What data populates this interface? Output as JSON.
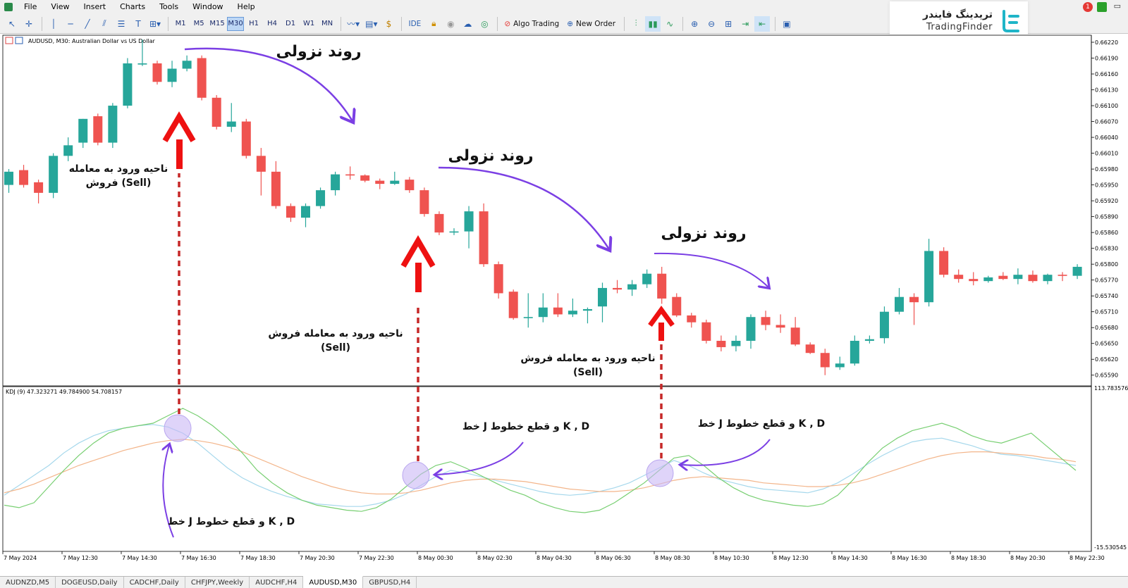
{
  "menu": {
    "items": [
      "File",
      "View",
      "Insert",
      "Charts",
      "Tools",
      "Window",
      "Help"
    ]
  },
  "toolbar": {
    "timeframes": [
      "M1",
      "M5",
      "M15",
      "M30",
      "H1",
      "H4",
      "D1",
      "W1",
      "MN"
    ],
    "active_timeframe": "M30",
    "ide_label": "IDE",
    "algo_trading_label": "Algo Trading",
    "new_order_label": "New Order",
    "notification_count": "1"
  },
  "logo": {
    "fa": "تریدینگ فایندر",
    "en": "TradingFinder"
  },
  "chart": {
    "title": "AUDUSD, M30:  Australian Dollar vs US Dollar",
    "indicator_label": "KDJ (9) 47.323271 49.784900 54.708157",
    "price_axis": [
      "0.66220",
      "0.66190",
      "0.66160",
      "0.66130",
      "0.66100",
      "0.66070",
      "0.66040",
      "0.66010",
      "0.65980",
      "0.65950",
      "0.65920",
      "0.65890",
      "0.65860",
      "0.65830",
      "0.65800",
      "0.65770",
      "0.65740",
      "0.65710",
      "0.65680",
      "0.65650",
      "0.65620",
      "0.65590"
    ],
    "osc_axis_top": "113.783576",
    "osc_axis_bottom": "-15.530545",
    "time_axis": [
      "7 May 2024",
      "7 May 12:30",
      "7 May 14:30",
      "7 May 16:30",
      "7 May 18:30",
      "7 May 20:30",
      "7 May 22:30",
      "8 May 00:30",
      "8 May 02:30",
      "8 May 04:30",
      "8 May 06:30",
      "8 May 08:30",
      "8 May 10:30",
      "8 May 12:30",
      "8 May 14:30",
      "8 May 16:30",
      "8 May 18:30",
      "8 May 20:30",
      "8 May 22:30"
    ],
    "colors": {
      "bull": "#26a69a",
      "bear": "#ef5350",
      "arrow_red": "#ee1111",
      "annotation_purple": "#7b3fe4",
      "k_line": "#a6d8ec",
      "d_line": "#f3b58a",
      "j_line": "#78cf72"
    },
    "candles": [
      {
        "o": 0.6595,
        "h": 0.6598,
        "l": 0.65935,
        "c": 0.65975
      },
      {
        "o": 0.65978,
        "h": 0.65988,
        "l": 0.65945,
        "c": 0.6595
      },
      {
        "o": 0.65955,
        "h": 0.6596,
        "l": 0.65915,
        "c": 0.65935
      },
      {
        "o": 0.65935,
        "h": 0.6601,
        "l": 0.65925,
        "c": 0.66005
      },
      {
        "o": 0.66005,
        "h": 0.6604,
        "l": 0.65995,
        "c": 0.66025
      },
      {
        "o": 0.6603,
        "h": 0.66075,
        "l": 0.6602,
        "c": 0.66075
      },
      {
        "o": 0.6608,
        "h": 0.66085,
        "l": 0.66025,
        "c": 0.6603
      },
      {
        "o": 0.6603,
        "h": 0.66105,
        "l": 0.6602,
        "c": 0.661
      },
      {
        "o": 0.661,
        "h": 0.6619,
        "l": 0.66095,
        "c": 0.6618
      },
      {
        "o": 0.6618,
        "h": 0.66225,
        "l": 0.66175,
        "c": 0.6618
      },
      {
        "o": 0.6618,
        "h": 0.66185,
        "l": 0.6614,
        "c": 0.66145
      },
      {
        "o": 0.66145,
        "h": 0.66185,
        "l": 0.66135,
        "c": 0.6617
      },
      {
        "o": 0.6617,
        "h": 0.66195,
        "l": 0.66165,
        "c": 0.66185
      },
      {
        "o": 0.6619,
        "h": 0.66195,
        "l": 0.6611,
        "c": 0.66115
      },
      {
        "o": 0.66115,
        "h": 0.6612,
        "l": 0.66055,
        "c": 0.6606
      },
      {
        "o": 0.6606,
        "h": 0.66105,
        "l": 0.6605,
        "c": 0.6607
      },
      {
        "o": 0.6607,
        "h": 0.66075,
        "l": 0.66,
        "c": 0.66005
      },
      {
        "o": 0.66005,
        "h": 0.6602,
        "l": 0.6593,
        "c": 0.65975
      },
      {
        "o": 0.65975,
        "h": 0.65995,
        "l": 0.65905,
        "c": 0.6591
      },
      {
        "o": 0.6591,
        "h": 0.65915,
        "l": 0.6588,
        "c": 0.65888
      },
      {
        "o": 0.65888,
        "h": 0.65915,
        "l": 0.6587,
        "c": 0.6591
      },
      {
        "o": 0.6591,
        "h": 0.65945,
        "l": 0.65905,
        "c": 0.6594
      },
      {
        "o": 0.6594,
        "h": 0.65975,
        "l": 0.6593,
        "c": 0.6597
      },
      {
        "o": 0.6597,
        "h": 0.65985,
        "l": 0.6596,
        "c": 0.65968
      },
      {
        "o": 0.65968,
        "h": 0.6597,
        "l": 0.65955,
        "c": 0.65958
      },
      {
        "o": 0.65958,
        "h": 0.65962,
        "l": 0.65942,
        "c": 0.65952
      },
      {
        "o": 0.65952,
        "h": 0.65975,
        "l": 0.6595,
        "c": 0.65958
      },
      {
        "o": 0.6596,
        "h": 0.65965,
        "l": 0.65935,
        "c": 0.6594
      },
      {
        "o": 0.6594,
        "h": 0.65945,
        "l": 0.6589,
        "c": 0.65895
      },
      {
        "o": 0.65895,
        "h": 0.659,
        "l": 0.65855,
        "c": 0.6586
      },
      {
        "o": 0.65862,
        "h": 0.65868,
        "l": 0.65855,
        "c": 0.65862
      },
      {
        "o": 0.65862,
        "h": 0.6591,
        "l": 0.6583,
        "c": 0.659
      },
      {
        "o": 0.659,
        "h": 0.65915,
        "l": 0.65795,
        "c": 0.658
      },
      {
        "o": 0.658,
        "h": 0.65805,
        "l": 0.65735,
        "c": 0.65745
      },
      {
        "o": 0.65748,
        "h": 0.65752,
        "l": 0.65695,
        "c": 0.65698
      },
      {
        "o": 0.65698,
        "h": 0.65745,
        "l": 0.6568,
        "c": 0.657
      },
      {
        "o": 0.657,
        "h": 0.65745,
        "l": 0.6569,
        "c": 0.65718
      },
      {
        "o": 0.65718,
        "h": 0.65745,
        "l": 0.657,
        "c": 0.65705
      },
      {
        "o": 0.65705,
        "h": 0.65735,
        "l": 0.657,
        "c": 0.65712
      },
      {
        "o": 0.65712,
        "h": 0.65718,
        "l": 0.65688,
        "c": 0.65715
      },
      {
        "o": 0.6572,
        "h": 0.65765,
        "l": 0.6569,
        "c": 0.65755
      },
      {
        "o": 0.65755,
        "h": 0.6577,
        "l": 0.65745,
        "c": 0.65752
      },
      {
        "o": 0.65752,
        "h": 0.6577,
        "l": 0.6574,
        "c": 0.65762
      },
      {
        "o": 0.65762,
        "h": 0.6579,
        "l": 0.65755,
        "c": 0.65782
      },
      {
        "o": 0.65782,
        "h": 0.65795,
        "l": 0.65725,
        "c": 0.65735
      },
      {
        "o": 0.65738,
        "h": 0.65745,
        "l": 0.657,
        "c": 0.65703
      },
      {
        "o": 0.65703,
        "h": 0.65708,
        "l": 0.6568,
        "c": 0.6569
      },
      {
        "o": 0.6569,
        "h": 0.65695,
        "l": 0.6565,
        "c": 0.65655
      },
      {
        "o": 0.65655,
        "h": 0.65665,
        "l": 0.65635,
        "c": 0.65643
      },
      {
        "o": 0.65645,
        "h": 0.65665,
        "l": 0.65635,
        "c": 0.65655
      },
      {
        "o": 0.65655,
        "h": 0.65705,
        "l": 0.6564,
        "c": 0.657
      },
      {
        "o": 0.657,
        "h": 0.65712,
        "l": 0.65675,
        "c": 0.65685
      },
      {
        "o": 0.65685,
        "h": 0.65705,
        "l": 0.6567,
        "c": 0.6568
      },
      {
        "o": 0.6568,
        "h": 0.657,
        "l": 0.65645,
        "c": 0.65648
      },
      {
        "o": 0.65648,
        "h": 0.65652,
        "l": 0.6563,
        "c": 0.65632
      },
      {
        "o": 0.65632,
        "h": 0.6564,
        "l": 0.6559,
        "c": 0.65605
      },
      {
        "o": 0.65605,
        "h": 0.65625,
        "l": 0.656,
        "c": 0.65612
      },
      {
        "o": 0.65612,
        "h": 0.65665,
        "l": 0.65608,
        "c": 0.65655
      },
      {
        "o": 0.65655,
        "h": 0.65665,
        "l": 0.6565,
        "c": 0.65658
      },
      {
        "o": 0.6566,
        "h": 0.6572,
        "l": 0.6565,
        "c": 0.6571
      },
      {
        "o": 0.6571,
        "h": 0.65755,
        "l": 0.65705,
        "c": 0.65738
      },
      {
        "o": 0.65738,
        "h": 0.65745,
        "l": 0.65685,
        "c": 0.65728
      },
      {
        "o": 0.65728,
        "h": 0.65848,
        "l": 0.6572,
        "c": 0.65825
      },
      {
        "o": 0.65825,
        "h": 0.65832,
        "l": 0.65775,
        "c": 0.6578
      },
      {
        "o": 0.6578,
        "h": 0.6579,
        "l": 0.65765,
        "c": 0.65772
      },
      {
        "o": 0.65772,
        "h": 0.65785,
        "l": 0.6576,
        "c": 0.65768
      },
      {
        "o": 0.65768,
        "h": 0.65778,
        "l": 0.65765,
        "c": 0.65775
      },
      {
        "o": 0.65778,
        "h": 0.65785,
        "l": 0.6577,
        "c": 0.65772
      },
      {
        "o": 0.65772,
        "h": 0.65792,
        "l": 0.65762,
        "c": 0.6578
      },
      {
        "o": 0.6578,
        "h": 0.65788,
        "l": 0.65765,
        "c": 0.65768
      },
      {
        "o": 0.65768,
        "h": 0.65782,
        "l": 0.65762,
        "c": 0.6578
      },
      {
        "o": 0.6578,
        "h": 0.65785,
        "l": 0.65768,
        "c": 0.65778
      },
      {
        "o": 0.65778,
        "h": 0.658,
        "l": 0.65772,
        "c": 0.65795
      }
    ],
    "kdj": {
      "k": [
        28,
        36,
        44,
        52,
        62,
        70,
        76,
        80,
        82,
        84,
        85,
        83,
        78,
        70,
        60,
        50,
        42,
        36,
        31,
        27,
        24,
        21,
        20,
        19,
        19,
        21,
        24,
        29,
        36,
        43,
        48,
        46,
        43,
        40,
        37,
        34,
        31,
        29,
        28,
        29,
        31,
        34,
        38,
        44,
        50,
        56,
        52,
        46,
        41,
        38,
        35,
        33,
        32,
        31,
        30,
        33,
        38,
        45,
        53,
        60,
        66,
        71,
        73,
        74,
        71,
        68,
        64,
        61,
        60,
        58,
        56,
        54,
        52
      ],
      "d": [
        30,
        33,
        37,
        42,
        47,
        52,
        56,
        60,
        64,
        67,
        70,
        72,
        73,
        72,
        70,
        67,
        63,
        58,
        53,
        48,
        43,
        39,
        35,
        32,
        30,
        29,
        29,
        30,
        32,
        35,
        38,
        40,
        41,
        41,
        40,
        39,
        37,
        35,
        33,
        32,
        31,
        31,
        32,
        34,
        37,
        40,
        42,
        43,
        42,
        41,
        40,
        38,
        37,
        36,
        35,
        35,
        36,
        38,
        41,
        45,
        49,
        53,
        57,
        60,
        62,
        63,
        63,
        62,
        61,
        60,
        58,
        57,
        55
      ],
      "j": [
        20,
        18,
        22,
        35,
        48,
        60,
        70,
        78,
        82,
        84,
        86,
        92,
        98,
        92,
        84,
        74,
        62,
        48,
        38,
        30,
        24,
        20,
        18,
        16,
        15,
        18,
        25,
        35,
        45,
        52,
        55,
        50,
        44,
        38,
        32,
        28,
        22,
        18,
        15,
        14,
        16,
        22,
        30,
        38,
        48,
        58,
        60,
        52,
        42,
        34,
        28,
        24,
        22,
        20,
        19,
        21,
        28,
        40,
        54,
        66,
        74,
        80,
        83,
        86,
        82,
        76,
        72,
        70,
        74,
        78,
        68,
        58,
        48
      ],
      "min": -15.5,
      "max": 113.8
    }
  },
  "annotations": {
    "trend_down_1": "روند نزولی",
    "trend_down_2": "روند نزولی",
    "trend_down_3": "روند نزولی",
    "sell_zone_1_line1": "ناحیه ورود به معامله",
    "sell_zone_1_line2": "فروش (Sell)",
    "sell_zone_2_line1": "ناحیه ورود به معامله فروش",
    "sell_zone_2_line2": "(Sell)",
    "sell_zone_3_line1": "ناحیه ورود به معامله فروش",
    "sell_zone_3_line2": "(Sell)",
    "cross_1": "خط J و قطع خطوط K , D",
    "cross_2": "خط J و قطع خطوط K , D",
    "cross_3": "خط J و قطع خطوط K , D"
  },
  "tabs": {
    "items": [
      "AUDNZD,M5",
      "DOGEUSD,Daily",
      "CADCHF,Daily",
      "CHFJPY,Weekly",
      "AUDCHF,H4",
      "AUDUSD,M30",
      "GBPUSD,H4"
    ],
    "active": "AUDUSD,M30"
  }
}
